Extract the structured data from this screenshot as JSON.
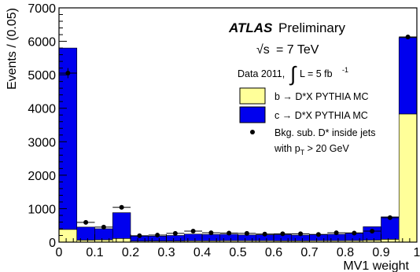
{
  "chart_data": {
    "type": "bar",
    "stacked": true,
    "xlabel": "MV1 weight",
    "ylabel": "Events / (0.05)",
    "xlim": [
      0,
      1
    ],
    "ylim": [
      0,
      7000
    ],
    "x_ticks": [
      "0",
      "0.1",
      "0.2",
      "0.3",
      "0.4",
      "0.5",
      "0.6",
      "0.7",
      "0.8",
      "0.9",
      "1"
    ],
    "y_ticks": [
      "0",
      "1000",
      "2000",
      "3000",
      "4000",
      "5000",
      "6000",
      "7000"
    ],
    "bin_edges": [
      0,
      0.05,
      0.1,
      0.15,
      0.2,
      0.25,
      0.3,
      0.35,
      0.4,
      0.45,
      0.5,
      0.55,
      0.6,
      0.65,
      0.7,
      0.75,
      0.8,
      0.85,
      0.9,
      0.95,
      1.0
    ],
    "series": [
      {
        "name": "b → D*X PYTHIA MC",
        "color": "#ffff99",
        "values": [
          380,
          60,
          70,
          110,
          30,
          35,
          35,
          40,
          40,
          45,
          45,
          45,
          40,
          40,
          45,
          45,
          50,
          60,
          85,
          3830
        ]
      },
      {
        "name": "c → D*X PYTHIA MC",
        "color": "#0000ee",
        "values": [
          5420,
          390,
          330,
          770,
          150,
          145,
          165,
          200,
          190,
          190,
          170,
          175,
          185,
          170,
          185,
          190,
          230,
          400,
          670,
          2280
        ]
      }
    ],
    "data_points": {
      "name": "Bkg. sub. D* inside jets",
      "name_line2": "with p_T > 20 GeV",
      "x": [
        0.025,
        0.075,
        0.125,
        0.175,
        0.225,
        0.275,
        0.325,
        0.375,
        0.425,
        0.475,
        0.525,
        0.575,
        0.625,
        0.675,
        0.725,
        0.775,
        0.825,
        0.875,
        0.925,
        0.975
      ],
      "y": [
        5050,
        590,
        450,
        1040,
        190,
        210,
        260,
        330,
        280,
        270,
        260,
        240,
        250,
        250,
        230,
        280,
        270,
        330,
        730,
        6130
      ],
      "yerr": [
        150,
        60,
        50,
        60,
        40,
        40,
        40,
        40,
        40,
        40,
        40,
        40,
        40,
        40,
        40,
        40,
        40,
        40,
        50,
        60
      ]
    },
    "legend_placement": "right",
    "annotations": {
      "atlas_bold": "ATLAS",
      "atlas_rest": "Preliminary",
      "energy_sqrt": "√s",
      "energy_rest": "= 7 TeV",
      "lumi_prefix": "Data 2011,",
      "lumi_int": "∫",
      "lumi_rest": "L = 5 fb",
      "lumi_exp": "-1"
    }
  }
}
